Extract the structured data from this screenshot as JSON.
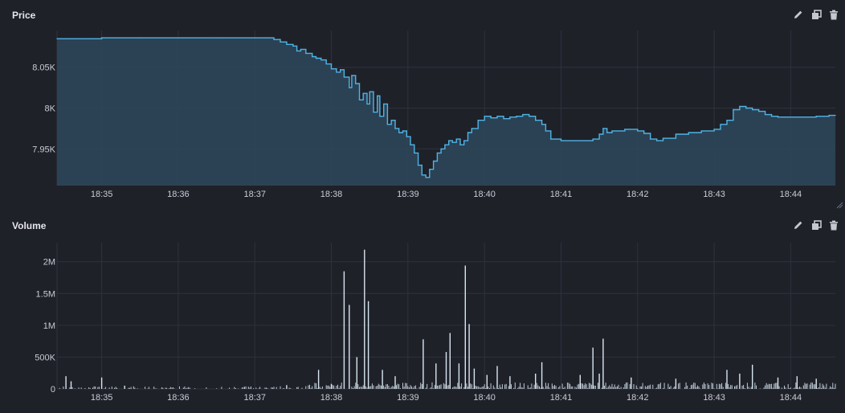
{
  "panels": {
    "price": {
      "title": "Price",
      "tools": [
        "pencil-icon",
        "duplicate-icon",
        "trash-icon"
      ]
    },
    "volume": {
      "title": "Volume",
      "tools": [
        "pencil-icon",
        "duplicate-icon",
        "trash-icon"
      ]
    }
  },
  "colors": {
    "background": "#1f2129",
    "grid": "#2e323c",
    "axis_text": "#c8ccd4",
    "line": "#4fb4e6",
    "area_fill": "#2c4659",
    "volume_bar": "#d8e6f0",
    "icon": "#c5c8ce"
  },
  "chart_data": [
    {
      "type": "area",
      "title": "Price",
      "xlabel": "",
      "ylabel": "",
      "x_unit": "minutes",
      "xlim": [
        "18:34:25",
        "18:44:35"
      ],
      "ylim": [
        7.905,
        8.095
      ],
      "yticks": [
        7.95,
        8.0,
        8.05
      ],
      "ytick_labels": [
        "7.95K",
        "8K",
        "8.05K"
      ],
      "xticks": [
        "18:35",
        "18:36",
        "18:37",
        "18:38",
        "18:39",
        "18:40",
        "18:41",
        "18:42",
        "18:43",
        "18:44"
      ],
      "grid": true,
      "series": [
        {
          "values_unit": "thousands",
          "points": [
            [
              "18:34:25",
              8.085
            ],
            [
              "18:34:45",
              8.085
            ],
            [
              "18:35:00",
              8.086
            ],
            [
              "18:35:30",
              8.086
            ],
            [
              "18:36:00",
              8.086
            ],
            [
              "18:36:30",
              8.086
            ],
            [
              "18:37:00",
              8.086
            ],
            [
              "18:37:10",
              8.086
            ],
            [
              "18:37:15",
              8.084
            ],
            [
              "18:37:20",
              8.081
            ],
            [
              "18:37:25",
              8.078
            ],
            [
              "18:37:30",
              8.076
            ],
            [
              "18:37:33",
              8.07
            ],
            [
              "18:37:36",
              8.072
            ],
            [
              "18:37:40",
              8.067
            ],
            [
              "18:37:45",
              8.063
            ],
            [
              "18:37:48",
              8.061
            ],
            [
              "18:37:52",
              8.059
            ],
            [
              "18:37:56",
              8.054
            ],
            [
              "18:38:00",
              8.048
            ],
            [
              "18:38:04",
              8.044
            ],
            [
              "18:38:07",
              8.047
            ],
            [
              "18:38:10",
              8.038
            ],
            [
              "18:38:14",
              8.025
            ],
            [
              "18:38:16",
              8.04
            ],
            [
              "18:38:19",
              8.03
            ],
            [
              "18:38:22",
              8.01
            ],
            [
              "18:38:25",
              8.018
            ],
            [
              "18:38:28",
              8.005
            ],
            [
              "18:38:30",
              8.02
            ],
            [
              "18:38:33",
              7.995
            ],
            [
              "18:38:36",
              8.015
            ],
            [
              "18:38:38",
              7.99
            ],
            [
              "18:38:41",
              8.005
            ],
            [
              "18:38:44",
              7.98
            ],
            [
              "18:38:47",
              7.985
            ],
            [
              "18:38:50",
              7.975
            ],
            [
              "18:38:53",
              7.97
            ],
            [
              "18:38:56",
              7.972
            ],
            [
              "18:38:59",
              7.965
            ],
            [
              "18:39:02",
              7.955
            ],
            [
              "18:39:05",
              7.945
            ],
            [
              "18:39:08",
              7.93
            ],
            [
              "18:39:11",
              7.918
            ],
            [
              "18:39:14",
              7.915
            ],
            [
              "18:39:17",
              7.925
            ],
            [
              "18:39:20",
              7.935
            ],
            [
              "18:39:23",
              7.945
            ],
            [
              "18:39:26",
              7.95
            ],
            [
              "18:39:29",
              7.955
            ],
            [
              "18:39:32",
              7.96
            ],
            [
              "18:39:35",
              7.958
            ],
            [
              "18:39:38",
              7.962
            ],
            [
              "18:39:41",
              7.955
            ],
            [
              "18:39:44",
              7.96
            ],
            [
              "18:39:47",
              7.97
            ],
            [
              "18:39:50",
              7.975
            ],
            [
              "18:39:55",
              7.985
            ],
            [
              "18:40:00",
              7.99
            ],
            [
              "18:40:05",
              7.988
            ],
            [
              "18:40:10",
              7.99
            ],
            [
              "18:40:15",
              7.987
            ],
            [
              "18:40:20",
              7.989
            ],
            [
              "18:40:25",
              7.99
            ],
            [
              "18:40:30",
              7.992
            ],
            [
              "18:40:35",
              7.99
            ],
            [
              "18:40:40",
              7.985
            ],
            [
              "18:40:45",
              7.98
            ],
            [
              "18:40:48",
              7.972
            ],
            [
              "18:40:52",
              7.962
            ],
            [
              "18:41:00",
              7.96
            ],
            [
              "18:41:10",
              7.96
            ],
            [
              "18:41:20",
              7.96
            ],
            [
              "18:41:25",
              7.962
            ],
            [
              "18:41:30",
              7.968
            ],
            [
              "18:41:33",
              7.975
            ],
            [
              "18:41:36",
              7.97
            ],
            [
              "18:41:40",
              7.972
            ],
            [
              "18:41:50",
              7.974
            ],
            [
              "18:42:00",
              7.972
            ],
            [
              "18:42:05",
              7.969
            ],
            [
              "18:42:10",
              7.962
            ],
            [
              "18:42:15",
              7.96
            ],
            [
              "18:42:20",
              7.963
            ],
            [
              "18:42:30",
              7.968
            ],
            [
              "18:42:40",
              7.97
            ],
            [
              "18:42:50",
              7.972
            ],
            [
              "18:43:00",
              7.974
            ],
            [
              "18:43:05",
              7.98
            ],
            [
              "18:43:10",
              7.985
            ],
            [
              "18:43:15",
              7.998
            ],
            [
              "18:43:20",
              8.002
            ],
            [
              "18:43:25",
              8.0
            ],
            [
              "18:43:30",
              7.998
            ],
            [
              "18:43:35",
              7.996
            ],
            [
              "18:43:40",
              7.992
            ],
            [
              "18:43:45",
              7.99
            ],
            [
              "18:43:50",
              7.989
            ],
            [
              "18:44:00",
              7.989
            ],
            [
              "18:44:10",
              7.989
            ],
            [
              "18:44:20",
              7.99
            ],
            [
              "18:44:30",
              7.991
            ],
            [
              "18:44:35",
              7.991
            ]
          ]
        }
      ]
    },
    {
      "type": "bar",
      "title": "Volume",
      "xlabel": "",
      "ylabel": "",
      "xlim": [
        "18:34:25",
        "18:44:35"
      ],
      "ylim": [
        0,
        2300000
      ],
      "yticks": [
        0,
        500000,
        1000000,
        1500000,
        2000000
      ],
      "ytick_labels": [
        "0",
        "500K",
        "1M",
        "1.5M",
        "2M"
      ],
      "xticks": [
        "18:35",
        "18:36",
        "18:37",
        "18:38",
        "18:39",
        "18:40",
        "18:41",
        "18:42",
        "18:43",
        "18:44"
      ],
      "grid": true,
      "baseline_volume": 30000,
      "spikes": [
        [
          "18:34:32",
          200000
        ],
        [
          "18:34:36",
          120000
        ],
        [
          "18:35:00",
          180000
        ],
        [
          "18:35:18",
          50000
        ],
        [
          "18:37:25",
          60000
        ],
        [
          "18:37:50",
          300000
        ],
        [
          "18:38:00",
          80000
        ],
        [
          "18:38:10",
          1850000
        ],
        [
          "18:38:14",
          1320000
        ],
        [
          "18:38:26",
          2190000
        ],
        [
          "18:38:29",
          1380000
        ],
        [
          "18:38:20",
          500000
        ],
        [
          "18:38:40",
          300000
        ],
        [
          "18:38:50",
          200000
        ],
        [
          "18:39:12",
          780000
        ],
        [
          "18:39:22",
          400000
        ],
        [
          "18:39:30",
          580000
        ],
        [
          "18:39:33",
          880000
        ],
        [
          "18:39:40",
          400000
        ],
        [
          "18:39:45",
          1940000
        ],
        [
          "18:39:48",
          1020000
        ],
        [
          "18:39:52",
          320000
        ],
        [
          "18:40:02",
          220000
        ],
        [
          "18:40:10",
          360000
        ],
        [
          "18:40:20",
          200000
        ],
        [
          "18:40:40",
          240000
        ],
        [
          "18:40:45",
          420000
        ],
        [
          "18:41:15",
          220000
        ],
        [
          "18:41:25",
          650000
        ],
        [
          "18:41:30",
          240000
        ],
        [
          "18:41:33",
          790000
        ],
        [
          "18:41:55",
          180000
        ],
        [
          "18:42:30",
          160000
        ],
        [
          "18:43:10",
          300000
        ],
        [
          "18:43:20",
          240000
        ],
        [
          "18:43:30",
          380000
        ],
        [
          "18:43:50",
          180000
        ],
        [
          "18:44:05",
          200000
        ],
        [
          "18:44:20",
          160000
        ]
      ]
    }
  ]
}
